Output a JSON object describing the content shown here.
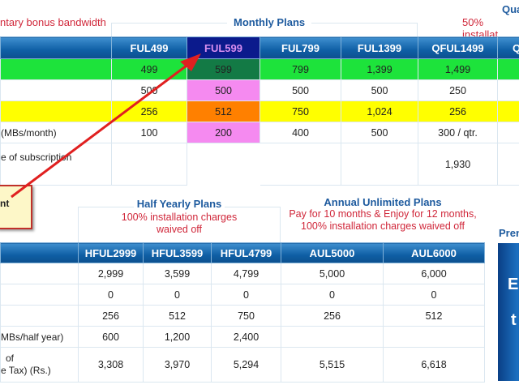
{
  "top": {
    "bonus_note": "ntary bonus bandwidth",
    "monthly_title": "Monthly Plans",
    "quarterly_title": "Qua",
    "quarterly_note": "50% installat",
    "columns": [
      "FUL499",
      "FUL599",
      "FUL799",
      "FUL1399",
      "QFUL1499",
      "Q"
    ],
    "rows": [
      {
        "label": "",
        "values": [
          "499",
          "599",
          "799",
          "1,399",
          "1,499",
          ""
        ]
      },
      {
        "label": "",
        "values": [
          "500",
          "500",
          "500",
          "500",
          "250",
          ""
        ]
      },
      {
        "label": "",
        "values": [
          "256",
          "512",
          "750",
          "1,024",
          "256",
          ""
        ]
      },
      {
        "label": "(MBs/month)",
        "values": [
          "100",
          "200",
          "400",
          "500",
          "300 / qtr.",
          ""
        ]
      },
      {
        "label": "e of subscription",
        "values": [
          "",
          "",
          "",
          "",
          "1,930",
          ""
        ]
      }
    ]
  },
  "callout": {
    "text": "nt"
  },
  "bottom": {
    "half_yearly_title": "Half Yearly Plans",
    "half_yearly_note": "100% installation charges waived off",
    "annual_title": "Annual Unlimited Plans",
    "annual_note_1": "Pay for 10 months & Enjoy for 12 months,",
    "annual_note_2": "100% installation charges waived off",
    "premium_title": "Pren",
    "premium_letters": [
      "E",
      "t"
    ],
    "columns": [
      "HFUL2999",
      "HFUL3599",
      "HFUL4799",
      "AUL5000",
      "AUL6000"
    ],
    "rows": [
      {
        "label": "",
        "values": [
          "2,999",
          "3,599",
          "4,799",
          "5,000",
          "6,000"
        ]
      },
      {
        "label": "",
        "values": [
          "0",
          "0",
          "0",
          "0",
          "0"
        ]
      },
      {
        "label": "",
        "values": [
          "256",
          "512",
          "750",
          "256",
          "512"
        ]
      },
      {
        "label": "MBs/half year)",
        "values": [
          "600",
          "1,200",
          "2,400",
          "",
          ""
        ]
      },
      {
        "label": "of",
        "label2": "e Tax) (Rs.)",
        "values": [
          "3,308",
          "3,970",
          "5,294",
          "5,515",
          "6,618"
        ]
      }
    ]
  },
  "colors": {
    "header": "#0f5fa5",
    "green": "#1de33b",
    "yellow": "#ffff00",
    "highlight_pink": "#f58af0",
    "highlight_orange": "#ff8000",
    "arrow": "#e02020"
  }
}
